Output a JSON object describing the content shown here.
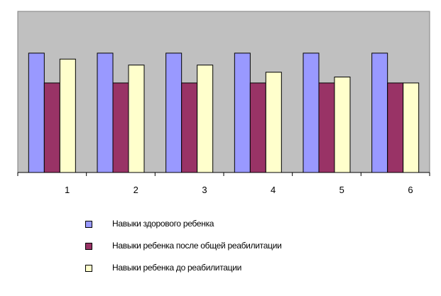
{
  "chart_data": {
    "type": "bar",
    "categories": [
      "1",
      "2",
      "3",
      "4",
      "5",
      "6"
    ],
    "series": [
      {
        "name": "Навыки здорового ребенка",
        "color": "#9999ff",
        "values": [
          100,
          100,
          100,
          100,
          100,
          100
        ]
      },
      {
        "name": "Навыки ребенка после общей реабилитации",
        "color": "#993366",
        "values": [
          75,
          75,
          75,
          75,
          75,
          75
        ]
      },
      {
        "name": "Навыки ребенка до реабилитации",
        "color": "#ffffcc",
        "values": [
          95,
          90,
          90,
          84,
          80,
          75
        ]
      }
    ],
    "ylim": [
      0,
      135
    ],
    "grid": false,
    "plot_background": "#c0c0c0",
    "legend_position": "bottom"
  }
}
